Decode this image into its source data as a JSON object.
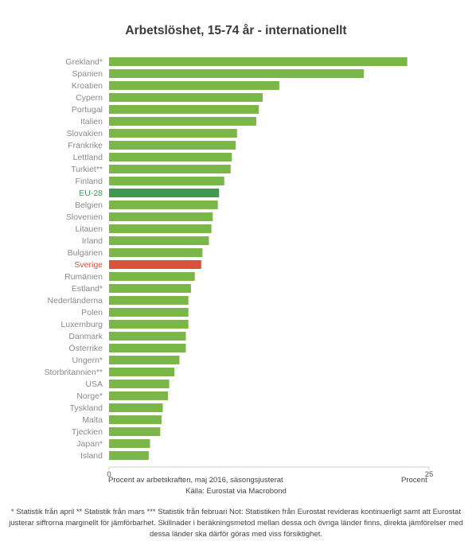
{
  "chart_data": {
    "type": "bar",
    "orientation": "horizontal",
    "title": "Arbetslöshet, 15-74 år - internationellt",
    "categories": [
      "Grekland*",
      "Spanien",
      "Kroatien",
      "Cypern",
      "Portugal",
      "Italien",
      "Slovakien",
      "Frankrike",
      "Lettland",
      "Turkiet**",
      "Finland",
      "EU-28",
      "Belgien",
      "Slovenien",
      "Litauen",
      "Irland",
      "Bulgarien",
      "Sverige",
      "Rumänien",
      "Estland*",
      "Nederländerna",
      "Polen",
      "Luxemburg",
      "Danmark",
      "Österrike",
      "Ungern*",
      "Storbritannien**",
      "USA",
      "Norge*",
      "Tyskland",
      "Malta",
      "Tjeckien",
      "Japan*",
      "Island"
    ],
    "values": [
      23.3,
      19.9,
      13.3,
      12.0,
      11.7,
      11.5,
      10.0,
      9.9,
      9.6,
      9.5,
      9.0,
      8.6,
      8.5,
      8.1,
      8.0,
      7.8,
      7.3,
      7.2,
      6.7,
      6.4,
      6.2,
      6.2,
      6.2,
      6.0,
      6.0,
      5.5,
      5.1,
      4.7,
      4.6,
      4.2,
      4.1,
      4.0,
      3.2,
      3.1
    ],
    "highlight": {
      "EU-28": "#3f9a4f",
      "Sverige": "#d9523c"
    },
    "bar_color": "#7ab648",
    "xlim": [
      0,
      25
    ],
    "xticks": [
      "0",
      "25"
    ],
    "xlabel": "Procent av arbetskraften, maj 2016, säsongsjusterat",
    "xunit": "Procent",
    "grid": false
  },
  "source": "Källa: Eurostat via Macrobond",
  "footnote": "* Statistik från april ** Statistik från mars *** Statistik från februari Not: Statistiken från Eurostat revideras kontinuerligt samt att Eurostat justerar siffrorna marginellt för jämförbarhet. Skillnader i beräkningsmetod mellan dessa och övriga länder finns, direkta jämförelser med dessa länder ska därför göras med viss försiktighet."
}
